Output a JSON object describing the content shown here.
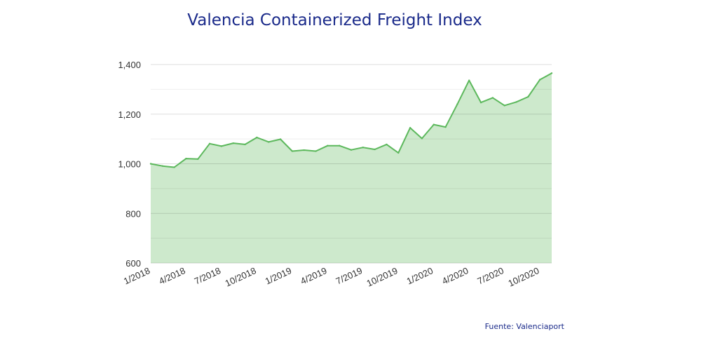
{
  "chart_data": {
    "type": "area",
    "title": "Valencia Containerized Freight Index",
    "xlabel": "",
    "ylabel": "",
    "ylim": [
      600,
      1400
    ],
    "yticks": [
      "600",
      "800",
      "1,000",
      "1,200",
      "1,400"
    ],
    "ytick_values": [
      600,
      800,
      1000,
      1200,
      1400
    ],
    "grid": true,
    "x_start": "1/2018",
    "x_tick_labels": [
      "1/2018",
      "4/2018",
      "7/2018",
      "10/2018",
      "1/2019",
      "4/2019",
      "7/2019",
      "10/2019",
      "1/2020",
      "4/2020",
      "7/2020",
      "10/2020"
    ],
    "x": [
      "1/2018",
      "2/2018",
      "3/2018",
      "4/2018",
      "5/2018",
      "6/2018",
      "7/2018",
      "8/2018",
      "9/2018",
      "10/2018",
      "11/2018",
      "12/2018",
      "1/2019",
      "2/2019",
      "3/2019",
      "4/2019",
      "5/2019",
      "6/2019",
      "7/2019",
      "8/2019",
      "9/2019",
      "10/2019",
      "11/2019",
      "12/2019",
      "1/2020",
      "2/2020",
      "3/2020",
      "4/2020",
      "5/2020",
      "6/2020",
      "7/2020",
      "8/2020",
      "9/2020",
      "10/2020",
      "11/2020"
    ],
    "values": [
      1000,
      991,
      986,
      1021,
      1019,
      1081,
      1071,
      1083,
      1078,
      1106,
      1088,
      1099,
      1051,
      1055,
      1051,
      1073,
      1073,
      1056,
      1066,
      1058,
      1078,
      1044,
      1145,
      1102,
      1158,
      1148,
      1240,
      1336,
      1247,
      1266,
      1235,
      1249,
      1270,
      1339,
      1365
    ],
    "colors": {
      "line": "#5cb85c",
      "fill": "#cde9cc",
      "title": "#1a2a8a"
    }
  },
  "footer": {
    "source": "Fuente: Valenciaport"
  }
}
